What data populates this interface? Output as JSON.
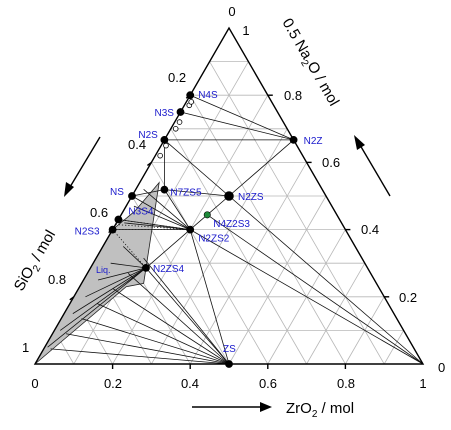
{
  "axes": {
    "top_apex_label": "0",
    "top_apex_value": "1",
    "right_apex_label": "0",
    "left_apex_label": "1",
    "bottom_ticks": [
      "0",
      "0.2",
      "0.4",
      "0.6",
      "0.8",
      "1"
    ],
    "left_ticks": [
      "0.2",
      "0.4",
      "0.6",
      "0.8"
    ],
    "right_ticks": [
      "0.8",
      "0.6",
      "0.4",
      "0.2"
    ],
    "titles": {
      "na2o": "0.5 Na",
      "na2o_sub": "2",
      "na2o_rest": "O / mol",
      "sio2": "SiO",
      "sio2_sub": "2",
      "sio2_rest": " / mol",
      "zro2": "ZrO",
      "zro2_sub": "2",
      "zro2_rest": " / mol"
    }
  },
  "phases": [
    {
      "id": "N4S",
      "label": "N4S",
      "na2o": 0.8,
      "zro2": 0.0
    },
    {
      "id": "N3S",
      "label": "N3S",
      "na2o": 0.75,
      "zro2": 0.0
    },
    {
      "id": "N2S",
      "label": "N2S",
      "na2o": 0.667,
      "zro2": 0.0
    },
    {
      "id": "NS",
      "label": "NS",
      "na2o": 0.5,
      "zro2": 0.0
    },
    {
      "id": "N3S4",
      "label": "N3S4",
      "na2o": 0.43,
      "zro2": 0.0
    },
    {
      "id": "N2S3",
      "label": "N2S3",
      "na2o": 0.4,
      "zro2": 0.0
    },
    {
      "id": "N2Z",
      "label": "N2Z",
      "na2o": 0.667,
      "zro2": 0.333
    },
    {
      "id": "N2ZS",
      "label": "N2ZS",
      "na2o": 0.5,
      "zro2": 0.25
    },
    {
      "id": "N4Z2S3",
      "label": "N4Z2S3",
      "na2o": 0.444,
      "zro2": 0.222
    },
    {
      "id": "N2ZS2",
      "label": "N2ZS2",
      "na2o": 0.4,
      "zro2": 0.2
    },
    {
      "id": "N7ZS5",
      "label": "N7ZS5",
      "na2o": 0.519,
      "zro2": 0.074
    },
    {
      "id": "N2ZS4",
      "label": "N2ZS4",
      "na2o": 0.286,
      "zro2": 0.143
    },
    {
      "id": "ZS",
      "label": "ZS",
      "na2o": 0.0,
      "zro2": 0.5
    }
  ],
  "liquid_label": "Liq.",
  "colors": {
    "labels": "#1a1acc",
    "liquid_fill": "#c0c0c0",
    "special_point": "#1f8a3a"
  }
}
